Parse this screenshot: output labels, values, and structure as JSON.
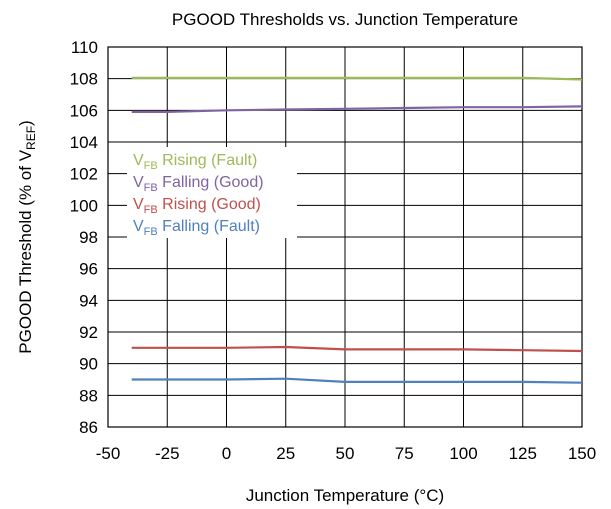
{
  "chart_data": {
    "type": "line",
    "title": "PGOOD Thresholds vs. Junction Temperature",
    "xlabel": "Junction Temperature (°C)",
    "ylabel": {
      "main": "PGOOD Threshold (% of V",
      "sub": "REF",
      "tail": ")"
    },
    "xlim": [
      -50,
      150
    ],
    "ylim": [
      86,
      110
    ],
    "xticks": [
      -50,
      -25,
      0,
      25,
      50,
      75,
      100,
      125,
      150
    ],
    "yticks": [
      86,
      88,
      90,
      92,
      94,
      96,
      98,
      100,
      102,
      104,
      106,
      108,
      110
    ],
    "grid": true,
    "legend_position": "upper-left",
    "series": [
      {
        "name": "Rising (Fault)",
        "legend_main": "V",
        "legend_sub": "FB",
        "legend_rest": " Rising (Fault)",
        "color": "#9bbb59",
        "x": [
          -40,
          0,
          25,
          50,
          75,
          100,
          125,
          150
        ],
        "y": [
          108.05,
          108.05,
          108.05,
          108.05,
          108.05,
          108.05,
          108.05,
          107.95
        ]
      },
      {
        "name": "Falling (Good)",
        "legend_main": "V",
        "legend_sub": "FB",
        "legend_rest": " Falling (Good)",
        "color": "#8064a2",
        "x": [
          -40,
          -25,
          0,
          25,
          50,
          75,
          100,
          125,
          150
        ],
        "y": [
          105.9,
          105.9,
          106.0,
          106.05,
          106.1,
          106.15,
          106.2,
          106.2,
          106.25
        ]
      },
      {
        "name": "Rising (Good)",
        "legend_main": "V",
        "legend_sub": "FB",
        "legend_rest": " Rising (Good)",
        "color": "#c0504d",
        "x": [
          -40,
          0,
          25,
          50,
          75,
          100,
          125,
          150
        ],
        "y": [
          91.0,
          91.0,
          91.05,
          90.9,
          90.9,
          90.9,
          90.85,
          90.8
        ]
      },
      {
        "name": "Falling (Fault)",
        "legend_main": "V",
        "legend_sub": "FB",
        "legend_rest": " Falling (Fault)",
        "color": "#4f81bd",
        "x": [
          -40,
          0,
          25,
          50,
          75,
          100,
          125,
          150
        ],
        "y": [
          89.0,
          89.0,
          89.05,
          88.85,
          88.85,
          88.85,
          88.85,
          88.8
        ]
      }
    ]
  }
}
